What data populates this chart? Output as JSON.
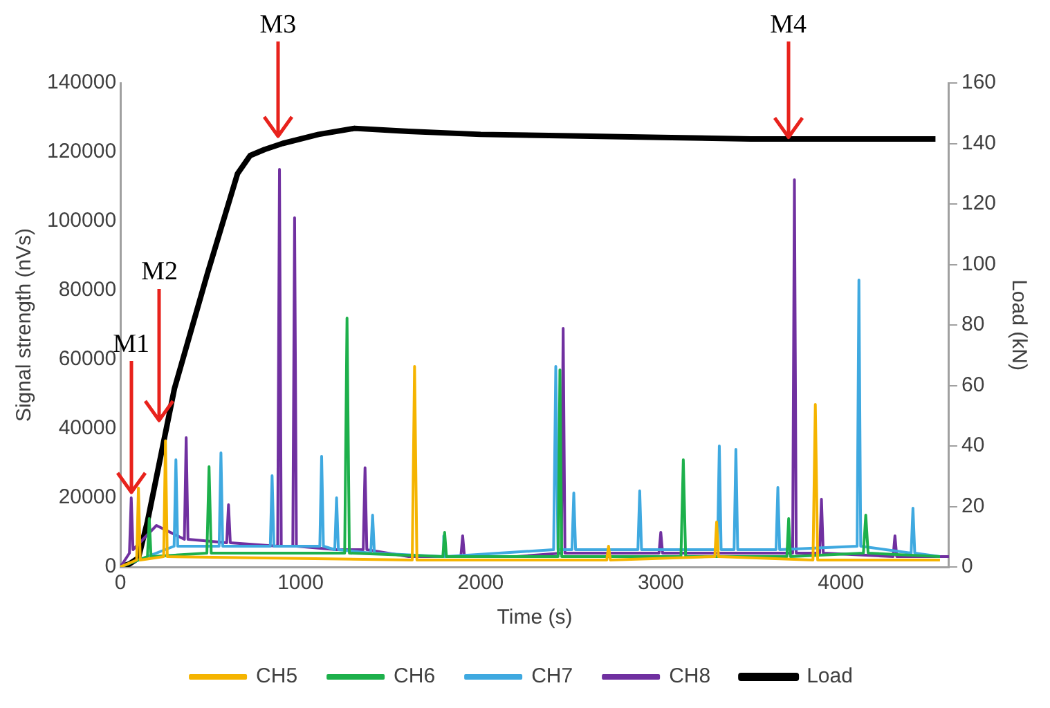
{
  "chart_data": {
    "type": "line",
    "xlabel": "Time (s)",
    "ylabel": "Signal strength (nVs)",
    "y2label": "Load (kN)",
    "xlim": [
      0,
      4600
    ],
    "xticks": [
      0,
      1000,
      2000,
      3000,
      4000
    ],
    "ylim": [
      0,
      140000
    ],
    "yticks": [
      0,
      20000,
      40000,
      60000,
      80000,
      100000,
      120000,
      140000
    ],
    "y2lim": [
      0,
      160
    ],
    "y2ticks": [
      0,
      20,
      40,
      60,
      80,
      100,
      120,
      140,
      160
    ],
    "grid": false,
    "legend": "bottom",
    "marker": "none",
    "line_style": "solid",
    "annotations": [
      {
        "text": "M1",
        "x": 60,
        "y": 20000
      },
      {
        "text": "M2",
        "x": 217,
        "y": 41000
      },
      {
        "text": "M3",
        "x": 875,
        "y": 123000
      },
      {
        "text": "M4",
        "x": 3708,
        "y": 122700
      }
    ],
    "series": [
      {
        "name": "CH5",
        "color": "#f5b400",
        "x": [
          0,
          90,
          100,
          110,
          240,
          250,
          260,
          1620,
          1633,
          1646,
          2700,
          2710,
          2720,
          3300,
          3310,
          3320,
          3845,
          3858,
          3871,
          4550
        ],
        "values": [
          0,
          2000,
          22800,
          2000,
          3000,
          36500,
          3000,
          2000,
          58000,
          2000,
          2000,
          6000,
          2000,
          3000,
          13000,
          3000,
          2000,
          47000,
          2000,
          2000
        ]
      },
      {
        "name": "CH6",
        "color": "#1db04b",
        "x": [
          0,
          150,
          160,
          170,
          480,
          492,
          504,
          1245,
          1258,
          1271,
          1790,
          1800,
          1810,
          2430,
          2440,
          2450,
          3112,
          3125,
          3138,
          3700,
          3710,
          3720,
          4125,
          4138,
          4151,
          4550
        ],
        "values": [
          0,
          3000,
          14000,
          3000,
          4000,
          29000,
          4000,
          4000,
          72000,
          4000,
          3000,
          10000,
          3000,
          3000,
          57000,
          3000,
          3000,
          31000,
          3000,
          3000,
          14000,
          3000,
          4000,
          15000,
          4000,
          3000
        ]
      },
      {
        "name": "CH7",
        "color": "#3fa9e0",
        "x": [
          0,
          298,
          308,
          318,
          548,
          558,
          568,
          832,
          842,
          852,
          1107,
          1117,
          1127,
          1190,
          1200,
          1210,
          1390,
          1400,
          1410,
          1790,
          1795,
          1805,
          2405,
          2417,
          2429,
          2507,
          2517,
          2527,
          2873,
          2883,
          2893,
          3315,
          3325,
          3335,
          3407,
          3417,
          3427,
          3640,
          3650,
          3660,
          4090,
          4100,
          4110,
          4390,
          4400,
          4410,
          4550
        ],
        "values": [
          0,
          6000,
          31000,
          6000,
          6000,
          33000,
          6000,
          6000,
          26400,
          6000,
          6000,
          32000,
          6000,
          5000,
          20000,
          5000,
          4000,
          15000,
          4000,
          3000,
          9000,
          3000,
          5000,
          58000,
          5000,
          5000,
          21400,
          5000,
          5000,
          22000,
          5000,
          5000,
          35000,
          5000,
          5000,
          34000,
          5000,
          5000,
          23000,
          5000,
          6000,
          83000,
          6000,
          4000,
          17000,
          4000,
          3000
        ]
      },
      {
        "name": "CH8",
        "color": "#7030a0",
        "x": [
          0,
          50,
          60,
          70,
          200,
          355,
          365,
          375,
          590,
          600,
          610,
          873,
          883,
          893,
          957,
          967,
          977,
          1200,
          1348,
          1358,
          1368,
          1600,
          1890,
          1900,
          1910,
          2200,
          2448,
          2458,
          2468,
          2990,
          3000,
          3010,
          3400,
          3732,
          3742,
          3752,
          3882,
          3892,
          3902,
          4290,
          4300,
          4310,
          4600
        ],
        "values": [
          0,
          4000,
          20000,
          5000,
          12000,
          8000,
          37400,
          8000,
          7000,
          18000,
          7000,
          6000,
          115000,
          6000,
          6000,
          101000,
          6000,
          5000,
          5000,
          28700,
          5000,
          3000,
          3000,
          9000,
          3000,
          3000,
          4000,
          69000,
          4000,
          4000,
          10000,
          4000,
          4000,
          4000,
          112000,
          4000,
          4000,
          19600,
          4000,
          3000,
          9000,
          3000,
          3000
        ]
      },
      {
        "name": "Load",
        "color": "#000000",
        "axis": "y2",
        "x": [
          0,
          50,
          100,
          150,
          300,
          483,
          650,
          720,
          800,
          900,
          1100,
          1300,
          1600,
          2000,
          2500,
          3000,
          3500,
          4000,
          4525
        ],
        "values": [
          0,
          1,
          3,
          15,
          59,
          97,
          130,
          136,
          138,
          140,
          143,
          145,
          144,
          143,
          142.5,
          142,
          141.5,
          141.5,
          141.5
        ]
      }
    ]
  }
}
